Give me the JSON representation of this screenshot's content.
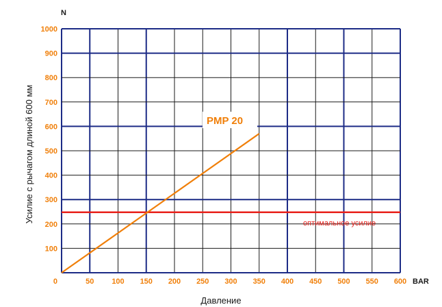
{
  "chart_data": {
    "type": "line",
    "title": "",
    "xlabel": "Давление",
    "ylabel": "Усилие с рычагом длиной 600 мм",
    "x_unit": "BAR",
    "y_unit": "N",
    "xlim": [
      0,
      600
    ],
    "ylim": [
      0,
      1000
    ],
    "x_ticks": [
      0,
      50,
      100,
      150,
      200,
      250,
      300,
      350,
      400,
      450,
      500,
      550,
      600
    ],
    "y_ticks": [
      0,
      100,
      200,
      300,
      400,
      500,
      600,
      700,
      800,
      900,
      1000
    ],
    "x_tick_labels": [
      "50",
      "100",
      "150",
      "200",
      "250",
      "300",
      "350",
      "400",
      "450",
      "500",
      "550",
      "600"
    ],
    "y_tick_labels": [
      "0",
      "100",
      "200",
      "300",
      "400",
      "500",
      "600",
      "700",
      "800",
      "900",
      "1000"
    ],
    "grid": true,
    "series": [
      {
        "name": "PMP 20",
        "color": "#f07f09",
        "x": [
          0,
          350
        ],
        "y": [
          0,
          570
        ]
      }
    ],
    "threshold": {
      "value": 248,
      "label": "оптимальное усилие",
      "color": "#e8211b"
    },
    "colors": {
      "grid_major": "#1c2b86",
      "grid_minor": "#1a1a1a",
      "tick": "#f07f09"
    }
  }
}
